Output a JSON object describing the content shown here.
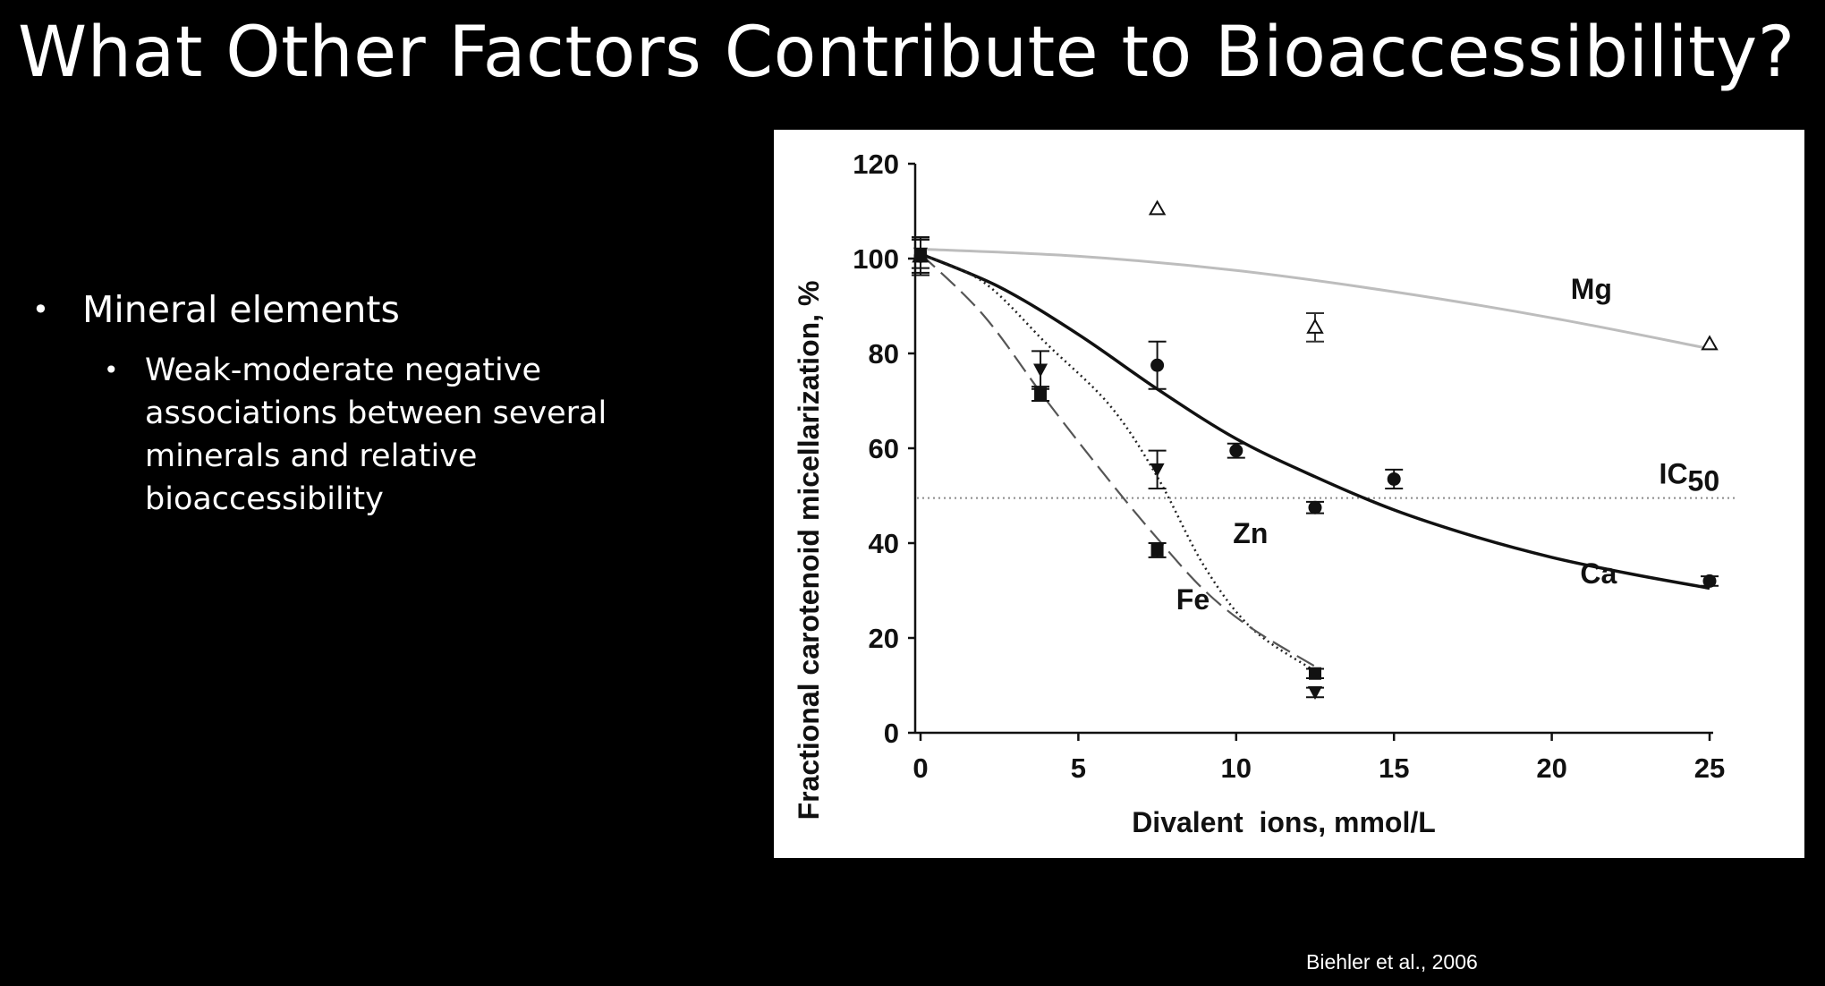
{
  "slide": {
    "title": "What Other Factors Contribute to Bioaccessibility?",
    "bullet_main": "Mineral elements",
    "bullet_sub": "Weak-moderate negative associations between several minerals and relative bioaccessibility",
    "citation": "Biehler et al., 2006"
  },
  "chart_data": {
    "type": "scatter",
    "xlabel": "Divalent  ions, mmol/L",
    "ylabel": "Fractional carotenoid micellarization, %",
    "xlim": [
      0,
      25
    ],
    "ylim": [
      0,
      120
    ],
    "xticks": [
      0,
      5,
      10,
      15,
      20,
      25
    ],
    "yticks": [
      0,
      20,
      40,
      60,
      80,
      100,
      120
    ],
    "grid": false,
    "reference_line": {
      "label_main": "IC",
      "label_sub": "50",
      "y": 49.5
    },
    "series": [
      {
        "name": "Mg",
        "marker": "open-triangle",
        "line_style": "solid-gray",
        "color": "#b8b8b8",
        "points": [
          [
            0,
            100.5
          ],
          [
            7.5,
            110.5
          ],
          [
            12.5,
            85.5
          ],
          [
            25,
            82
          ]
        ],
        "errors": [
          4,
          0,
          3,
          0
        ],
        "fit": [
          [
            0,
            102
          ],
          [
            5,
            100.5
          ],
          [
            10,
            97.5
          ],
          [
            15,
            93
          ],
          [
            20,
            87.5
          ],
          [
            25,
            81
          ]
        ],
        "label_at": [
          20.6,
          91.5
        ]
      },
      {
        "name": "Ca",
        "marker": "filled-circle",
        "line_style": "solid-black",
        "color": "#111111",
        "points": [
          [
            0,
            100.5
          ],
          [
            7.5,
            77.5
          ],
          [
            10,
            59.5
          ],
          [
            12.5,
            47.5
          ],
          [
            15,
            53.5
          ],
          [
            25,
            32
          ]
        ],
        "errors": [
          3.5,
          5,
          1.5,
          1.2,
          2,
          1
        ],
        "fit": [
          [
            0,
            101
          ],
          [
            2.5,
            94
          ],
          [
            5,
            84
          ],
          [
            7.5,
            72.5
          ],
          [
            10,
            62
          ],
          [
            12.5,
            54
          ],
          [
            15,
            47
          ],
          [
            17.5,
            41.5
          ],
          [
            20,
            37
          ],
          [
            22.5,
            33.5
          ],
          [
            25,
            30.5
          ]
        ],
        "label_at": [
          20.9,
          31.5
        ]
      },
      {
        "name": "Zn",
        "marker": "filled-triangle-down",
        "line_style": "dotted",
        "color": "#111111",
        "points": [
          [
            0,
            101
          ],
          [
            3.8,
            76.5
          ],
          [
            7.5,
            55.5
          ],
          [
            12.5,
            8.5
          ]
        ],
        "errors": [
          3,
          4,
          4,
          1
        ],
        "fit": [
          [
            0,
            101
          ],
          [
            2,
            95
          ],
          [
            4,
            82
          ],
          [
            6,
            69
          ],
          [
            7.5,
            54
          ],
          [
            9,
            35
          ],
          [
            10.5,
            22
          ],
          [
            12.5,
            13
          ]
        ],
        "label_at": [
          9.9,
          40
        ]
      },
      {
        "name": "Fe",
        "marker": "filled-square",
        "line_style": "dashed",
        "color": "#111111",
        "points": [
          [
            0,
            100.5
          ],
          [
            3.8,
            71.5
          ],
          [
            7.5,
            38.5
          ],
          [
            12.5,
            12.5
          ]
        ],
        "errors": [
          4,
          1.5,
          1.5,
          1
        ],
        "fit": [
          [
            0,
            101
          ],
          [
            2,
            88
          ],
          [
            4,
            70
          ],
          [
            6,
            53
          ],
          [
            7.5,
            41
          ],
          [
            9,
            30
          ],
          [
            10.5,
            22
          ],
          [
            12.5,
            14
          ]
        ],
        "label_at": [
          8.1,
          26
        ]
      }
    ]
  }
}
